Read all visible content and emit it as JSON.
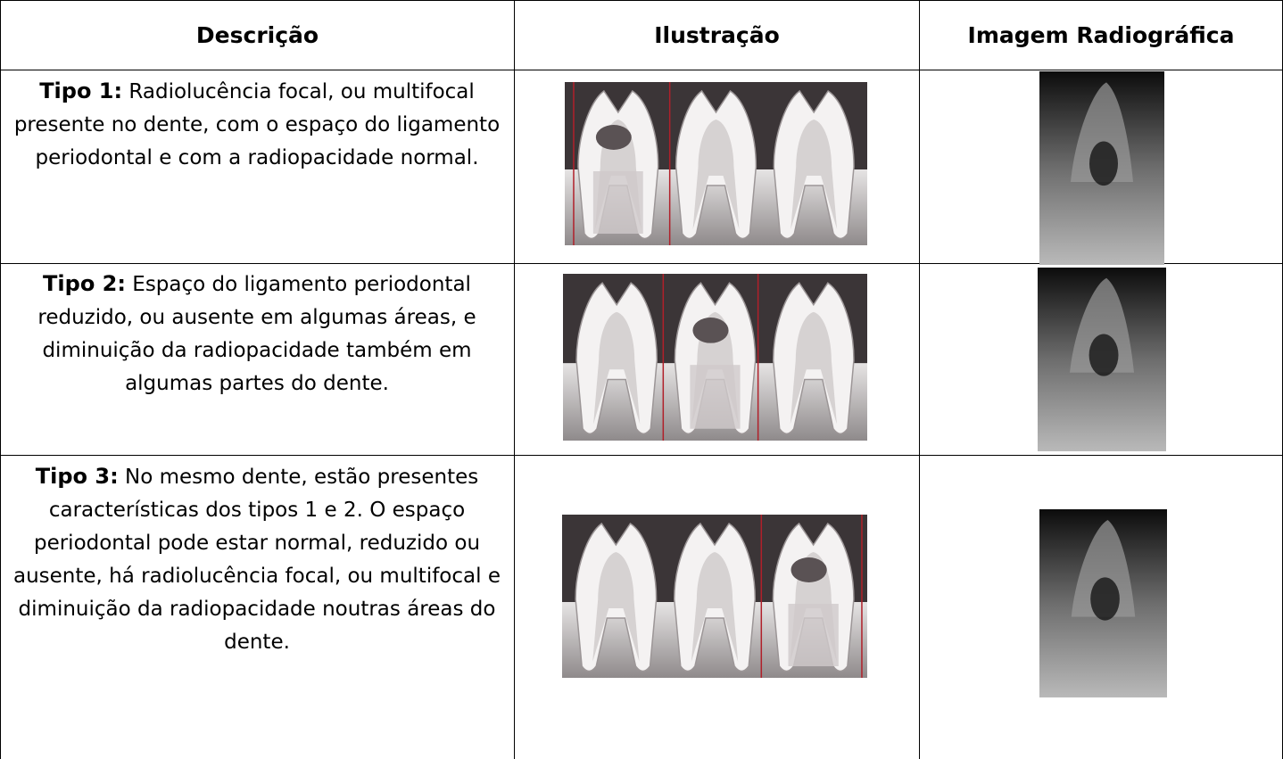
{
  "table": {
    "header": [
      "Descrição",
      "Ilustração",
      "Imagem Radiográfica"
    ],
    "rows": [
      {
        "label": "Tipo 1:",
        "text": "Radiolucência focal, ou multifocal presente no dente, com o espaço do ligamento periodontal e com a radiopacidade normal."
      },
      {
        "label": "Tipo 2:",
        "text": "Espaço do ligamento periodontal reduzido, ou ausente em algumas áreas, e diminuição da radiopacidade também em algumas partes do dente."
      },
      {
        "label": "Tipo 3:",
        "text": "No mesmo dente, estão presentes características dos tipos 1 e 2. O espaço periodontal pode estar normal, reduzido ou ausente, há radiolucência focal, ou multifocal e diminuição da radiopacidade noutras áreas do dente."
      }
    ]
  }
}
